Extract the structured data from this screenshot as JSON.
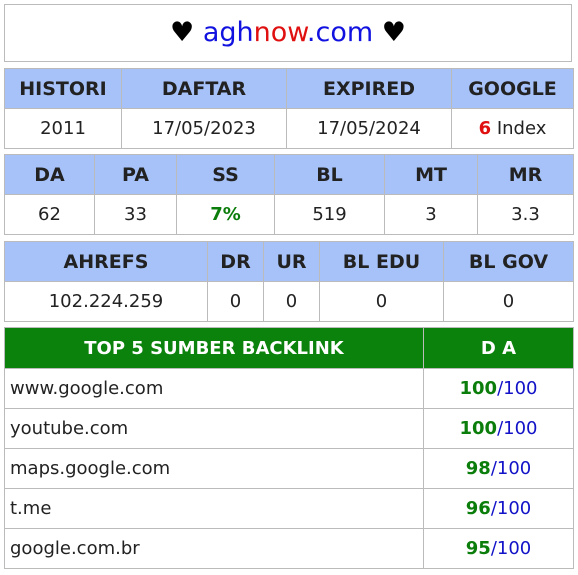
{
  "title": {
    "left_heart": "♥",
    "part1": "agh",
    "part2": "now",
    "part3": ".com",
    "right_heart": "♥"
  },
  "table1": {
    "headers": [
      "HISTORI",
      "DAFTAR",
      "EXPIRED",
      "GOOGLE"
    ],
    "values": {
      "histori": "2011",
      "daftar": "17/05/2023",
      "expired": "17/05/2024",
      "google_count": "6",
      "google_label": "Index"
    }
  },
  "table2": {
    "headers": [
      "DA",
      "PA",
      "SS",
      "BL",
      "MT",
      "MR"
    ],
    "values": [
      "62",
      "33",
      "7%",
      "519",
      "3",
      "3.3"
    ]
  },
  "table3": {
    "headers": [
      "AHREFS",
      "DR",
      "UR",
      "BL EDU",
      "BL GOV"
    ],
    "values": [
      "102.224.259",
      "0",
      "0",
      "0",
      "0"
    ]
  },
  "backlinks": {
    "header_site": "TOP 5 SUMBER BACKLINK",
    "header_da": "D A",
    "rows": [
      {
        "site": "www.google.com",
        "da": "100",
        "sep": "/",
        "max": "100"
      },
      {
        "site": "youtube.com",
        "da": "100",
        "sep": "/",
        "max": "100"
      },
      {
        "site": "maps.google.com",
        "da": "98",
        "sep": "/",
        "max": "100"
      },
      {
        "site": "t.me",
        "da": "96",
        "sep": "/",
        "max": "100"
      },
      {
        "site": "google.com.br",
        "da": "95",
        "sep": "/",
        "max": "100"
      }
    ]
  },
  "colors": {
    "header_blue": "#a6c2f8",
    "header_green": "#0b820b",
    "accent_red": "#e01010",
    "accent_green": "#0b7d0b",
    "accent_blue": "#1212c8"
  }
}
